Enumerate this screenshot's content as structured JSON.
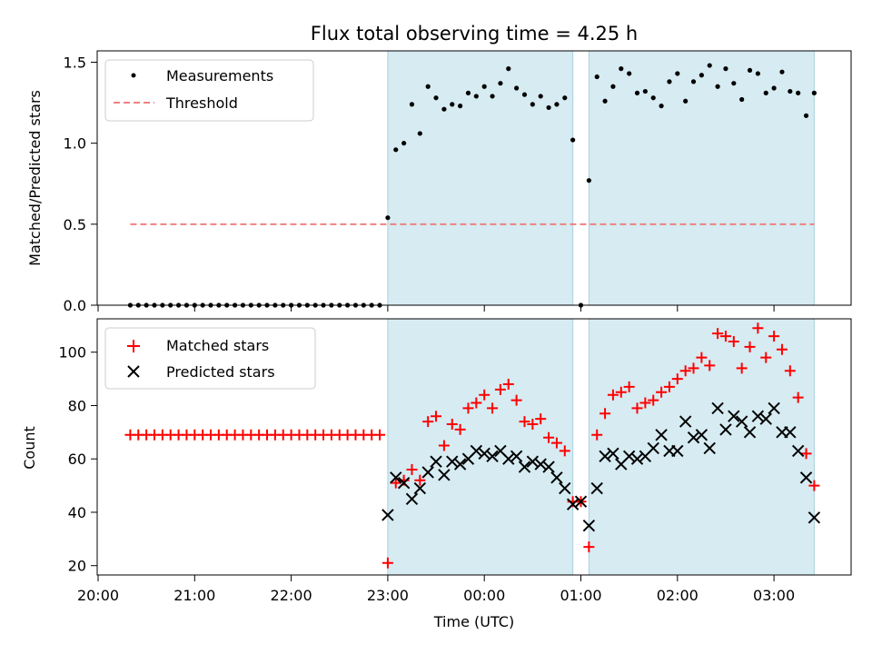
{
  "chart_data": [
    {
      "type": "scatter",
      "title": "Flux total observing time = 4.25 h",
      "xlabel": "",
      "ylabel": "Matched/Predicted stars",
      "ylim": [
        0,
        1.57
      ],
      "yticks": [
        "0.0",
        "0.5",
        "1.0",
        "1.5"
      ],
      "legend_position": "top-left",
      "shaded_intervals": [
        [
          "23:00",
          "00:55"
        ],
        [
          "01:05",
          "03:25"
        ]
      ],
      "threshold": {
        "name": "Threshold",
        "value": 0.5,
        "x_range": [
          "20:20",
          "23:25"
        ],
        "extends_to": "03:25",
        "color": "#f08080",
        "style": "dashed"
      },
      "series": [
        {
          "name": "Measurements",
          "marker": "dot",
          "color": "#000000",
          "x": [
            "20:20",
            "20:25",
            "20:30",
            "20:35",
            "20:40",
            "20:45",
            "20:50",
            "20:55",
            "21:00",
            "21:05",
            "21:10",
            "21:15",
            "21:20",
            "21:25",
            "21:30",
            "21:35",
            "21:40",
            "21:45",
            "21:50",
            "21:55",
            "22:00",
            "22:05",
            "22:10",
            "22:15",
            "22:20",
            "22:25",
            "22:30",
            "22:35",
            "22:40",
            "22:45",
            "22:50",
            "22:55",
            "23:00",
            "23:05",
            "23:10",
            "23:15",
            "23:20",
            "23:25",
            "23:30",
            "23:35",
            "23:40",
            "23:45",
            "23:50",
            "23:55",
            "00:00",
            "00:05",
            "00:10",
            "00:15",
            "00:20",
            "00:25",
            "00:30",
            "00:35",
            "00:40",
            "00:45",
            "00:50",
            "00:55",
            "01:00",
            "01:05",
            "01:10",
            "01:15",
            "01:20",
            "01:25",
            "01:30",
            "01:35",
            "01:40",
            "01:45",
            "01:50",
            "01:55",
            "02:00",
            "02:05",
            "02:10",
            "02:15",
            "02:20",
            "02:25",
            "02:30",
            "02:35",
            "02:40",
            "02:45",
            "02:50",
            "02:55",
            "03:00",
            "03:05",
            "03:10",
            "03:15",
            "03:20",
            "03:25"
          ],
          "y": [
            0,
            0,
            0,
            0,
            0,
            0,
            0,
            0,
            0,
            0,
            0,
            0,
            0,
            0,
            0,
            0,
            0,
            0,
            0,
            0,
            0,
            0,
            0,
            0,
            0,
            0,
            0,
            0,
            0,
            0,
            0,
            0,
            0.54,
            0.96,
            1.0,
            1.24,
            1.06,
            1.35,
            1.28,
            1.21,
            1.24,
            1.23,
            1.31,
            1.29,
            1.35,
            1.29,
            1.37,
            1.46,
            1.34,
            1.3,
            1.24,
            1.29,
            1.22,
            1.24,
            1.28,
            1.02,
            0.0,
            0.77,
            1.41,
            1.26,
            1.35,
            1.46,
            1.43,
            1.31,
            1.32,
            1.28,
            1.23,
            1.38,
            1.43,
            1.26,
            1.38,
            1.42,
            1.48,
            1.35,
            1.46,
            1.37,
            1.27,
            1.45,
            1.43,
            1.31,
            1.34,
            1.44,
            1.32,
            1.31,
            1.17,
            1.31
          ]
        }
      ]
    },
    {
      "type": "scatter",
      "title": "",
      "xlabel": "Time (UTC)",
      "ylabel": "Count",
      "ylim": [
        16.5,
        112.5
      ],
      "yticks": [
        "20",
        "40",
        "60",
        "80",
        "100"
      ],
      "xticks": [
        "20:00",
        "21:00",
        "22:00",
        "23:00",
        "00:00",
        "01:00",
        "02:00",
        "03:00"
      ],
      "legend_position": "top-left",
      "shaded_intervals": [
        [
          "23:00",
          "00:55"
        ],
        [
          "01:05",
          "03:25"
        ]
      ],
      "series": [
        {
          "name": "Matched stars",
          "marker": "plus",
          "color": "#ff0000",
          "x": [
            "20:20",
            "20:25",
            "20:30",
            "20:35",
            "20:40",
            "20:45",
            "20:50",
            "20:55",
            "21:00",
            "21:05",
            "21:10",
            "21:15",
            "21:20",
            "21:25",
            "21:30",
            "21:35",
            "21:40",
            "21:45",
            "21:50",
            "21:55",
            "22:00",
            "22:05",
            "22:10",
            "22:15",
            "22:20",
            "22:25",
            "22:30",
            "22:35",
            "22:40",
            "22:45",
            "22:50",
            "22:55",
            "23:00",
            "23:05",
            "23:10",
            "23:15",
            "23:20",
            "23:25",
            "23:30",
            "23:35",
            "23:40",
            "23:45",
            "23:50",
            "23:55",
            "00:00",
            "00:05",
            "00:10",
            "00:15",
            "00:20",
            "00:25",
            "00:30",
            "00:35",
            "00:40",
            "00:45",
            "00:50",
            "00:55",
            "01:00",
            "01:05",
            "01:10",
            "01:15",
            "01:20",
            "01:25",
            "01:30",
            "01:35",
            "01:40",
            "01:45",
            "01:50",
            "01:55",
            "02:00",
            "02:05",
            "02:10",
            "02:15",
            "02:20",
            "02:25",
            "02:30",
            "02:35",
            "02:40",
            "02:45",
            "02:50",
            "02:55",
            "03:00",
            "03:05",
            "03:10",
            "03:15",
            "03:20",
            "03:25"
          ],
          "y": [
            69,
            69,
            69,
            69,
            69,
            69,
            69,
            69,
            69,
            69,
            69,
            69,
            69,
            69,
            69,
            69,
            69,
            69,
            69,
            69,
            69,
            69,
            69,
            69,
            69,
            69,
            69,
            69,
            69,
            69,
            69,
            69,
            21,
            51,
            52,
            56,
            52,
            74,
            76,
            65,
            73,
            71,
            79,
            81,
            84,
            79,
            86,
            88,
            82,
            74,
            73,
            75,
            68,
            66,
            63,
            44,
            44,
            27,
            69,
            77,
            84,
            85,
            87,
            79,
            81,
            82,
            85,
            87,
            90,
            93,
            94,
            98,
            95,
            107,
            106,
            104,
            94,
            102,
            109,
            98,
            106,
            101,
            93,
            83,
            62,
            50
          ]
        },
        {
          "name": "Predicted stars",
          "marker": "x",
          "color": "#000000",
          "x": [
            "23:00",
            "23:05",
            "23:10",
            "23:15",
            "23:20",
            "23:25",
            "23:30",
            "23:35",
            "23:40",
            "23:45",
            "23:50",
            "23:55",
            "00:00",
            "00:05",
            "00:10",
            "00:15",
            "00:20",
            "00:25",
            "00:30",
            "00:35",
            "00:40",
            "00:45",
            "00:50",
            "00:55",
            "01:00",
            "01:05",
            "01:10",
            "01:15",
            "01:20",
            "01:25",
            "01:30",
            "01:35",
            "01:40",
            "01:45",
            "01:50",
            "01:55",
            "02:00",
            "02:05",
            "02:10",
            "02:15",
            "02:20",
            "02:25",
            "02:30",
            "02:35",
            "02:40",
            "02:45",
            "02:50",
            "02:55",
            "03:00",
            "03:05",
            "03:10",
            "03:15",
            "03:20",
            "03:25"
          ],
          "y": [
            39,
            53,
            51,
            45,
            49,
            55,
            59,
            54,
            59,
            58,
            60,
            63,
            62,
            61,
            63,
            60,
            61,
            57,
            59,
            58,
            57,
            53,
            49,
            43,
            44,
            35,
            49,
            61,
            62,
            58,
            61,
            60,
            61,
            64,
            69,
            63,
            63,
            74,
            68,
            69,
            64,
            79,
            71,
            76,
            74,
            70,
            76,
            75,
            79,
            70,
            70,
            63,
            53,
            38
          ]
        }
      ]
    }
  ]
}
